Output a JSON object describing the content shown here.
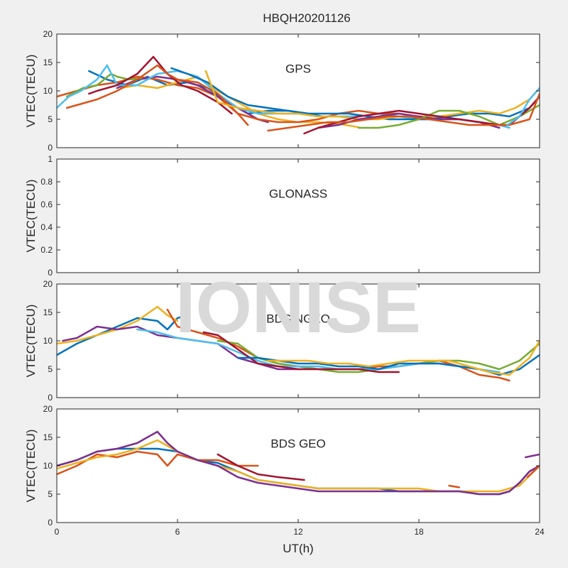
{
  "figure": {
    "title": "HBQH20201126",
    "watermark": "IONISE",
    "xlabel": "UT(h)",
    "xticks": [
      "0",
      "6",
      "12",
      "18",
      "24"
    ],
    "background": "#f0f0f0",
    "axes_color": "#ffffff",
    "watermark_color": "#d9d9d9"
  },
  "chart_data": [
    {
      "type": "line",
      "annotation": "GPS",
      "ylabel": "VTEC(TECU)",
      "xlim": [
        0,
        24
      ],
      "ylim": [
        0,
        20
      ],
      "yticks": [
        "0",
        "5",
        "10",
        "15",
        "20"
      ],
      "grid": false,
      "series": [
        {
          "color": "#0072bd",
          "x": [
            1.6,
            2.5,
            3.5,
            4.5,
            5.5,
            6.5,
            7.5,
            8.5,
            9.5,
            10.5,
            11.5,
            12.5,
            13.2
          ],
          "y": [
            13.5,
            12,
            11,
            12.5,
            11,
            11.5,
            10.5,
            8,
            6,
            6.5,
            6.5,
            6,
            5.5
          ]
        },
        {
          "color": "#d95319",
          "x": [
            0,
            1,
            2,
            3,
            4,
            5,
            6,
            7,
            8,
            9,
            9.5
          ],
          "y": [
            9,
            10,
            11,
            11.5,
            12.5,
            12,
            11,
            10.5,
            9,
            6,
            4
          ]
        },
        {
          "color": "#edb120",
          "x": [
            3.2,
            4,
            5,
            6,
            7,
            8,
            9,
            10,
            11,
            12,
            13,
            14,
            15
          ],
          "y": [
            10.5,
            11,
            10.5,
            11.5,
            12.5,
            10,
            8,
            6,
            5,
            4.5,
            4.5,
            4.2,
            3.6
          ]
        },
        {
          "color": "#7e2f8e",
          "x": [
            3,
            4,
            5,
            6,
            7,
            8,
            9,
            10,
            10.5
          ],
          "y": [
            10.5,
            12,
            12.5,
            12,
            11,
            9,
            7,
            5,
            4.5
          ]
        },
        {
          "color": "#77ac30",
          "x": [
            0.5,
            1.3,
            2,
            2.7,
            3,
            3.6,
            4.2
          ],
          "y": [
            9,
            10.5,
            11,
            13,
            12.5,
            12,
            12.2
          ]
        },
        {
          "color": "#4dbeee",
          "x": [
            0,
            0.6,
            1.2,
            2,
            2.5,
            3,
            4,
            5,
            6,
            7,
            8,
            9,
            10,
            11,
            12,
            13,
            14,
            15,
            16,
            17,
            18,
            19,
            20,
            21,
            22,
            22.5
          ],
          "y": [
            7,
            9,
            10,
            12,
            14.5,
            11,
            11,
            13,
            13.5,
            12.5,
            9.5,
            7,
            6,
            6,
            6,
            5.5,
            5.5,
            5.5,
            6,
            5.5,
            5,
            5,
            5,
            4.5,
            4,
            3.5
          ]
        },
        {
          "color": "#a2142f",
          "x": [
            1.6,
            2,
            3,
            4,
            4.8,
            5.5,
            6.2,
            7,
            8,
            8.7
          ],
          "y": [
            9.5,
            10,
            11,
            13,
            16,
            13,
            11,
            10,
            8,
            6
          ]
        },
        {
          "color": "#d95319",
          "x": [
            0.5,
            1,
            2,
            3,
            4,
            5,
            5.5,
            6,
            7,
            8,
            9,
            10,
            11,
            12,
            13,
            14,
            15,
            16,
            17
          ],
          "y": [
            7,
            7.5,
            8.5,
            10,
            12,
            14.5,
            13,
            12,
            11.5,
            9.5,
            6,
            5,
            4.5,
            4.5,
            5,
            6,
            6.5,
            6,
            6
          ]
        },
        {
          "color": "#0072bd",
          "x": [
            5.7,
            6.5,
            7.5,
            8.5,
            9.5,
            10.5,
            11.5,
            12.5,
            13.5,
            14.5,
            15.5,
            16.5,
            17.5,
            18.5,
            19.5,
            20.5,
            21.5,
            22.5,
            23.5,
            24
          ],
          "y": [
            14,
            13,
            11.5,
            9,
            7.5,
            7,
            6.5,
            6,
            6,
            6,
            5.5,
            5,
            5,
            5,
            5.5,
            6,
            6,
            5.5,
            7,
            9
          ]
        },
        {
          "color": "#edb120",
          "x": [
            7.4,
            8,
            9,
            10,
            11,
            12,
            13,
            14,
            15,
            16,
            17,
            18,
            19,
            20,
            21,
            22,
            22.8,
            23.5,
            24
          ],
          "y": [
            13.5,
            8,
            7,
            6.5,
            6,
            6,
            5.5,
            5.5,
            5,
            5,
            5.5,
            5.5,
            5.5,
            6,
            6.5,
            6,
            7,
            8.5,
            10.5
          ]
        },
        {
          "color": "#7e2f8e",
          "x": [
            13,
            14,
            15,
            16,
            17,
            18,
            19,
            20,
            21,
            21.5,
            22
          ],
          "y": [
            3.5,
            4,
            5,
            5.5,
            6,
            5.5,
            5,
            5,
            4.5,
            4,
            3.5
          ]
        },
        {
          "color": "#77ac30",
          "x": [
            15,
            16,
            17,
            18,
            19,
            20,
            21,
            22,
            23,
            24
          ],
          "y": [
            3.5,
            3.5,
            4,
            5,
            6.5,
            6.5,
            5.5,
            4,
            5.5,
            7.5
          ]
        },
        {
          "color": "#a2142f",
          "x": [
            12.3,
            13,
            14,
            15,
            16,
            17,
            18,
            19,
            20,
            21,
            22,
            22.5,
            23,
            23.5,
            24
          ],
          "y": [
            2.5,
            3.5,
            4.5,
            5.5,
            6,
            6.5,
            6,
            5.5,
            5,
            4.5,
            4,
            4,
            5.5,
            7,
            9
          ]
        },
        {
          "color": "#d95319",
          "x": [
            10.5,
            11.5,
            12.5,
            13.5,
            14.5,
            15.5,
            16.5,
            17.5,
            18.5,
            19.5,
            20.5,
            21.5,
            22.5,
            23.5,
            24
          ],
          "y": [
            3,
            3.5,
            4,
            4.5,
            4.5,
            5,
            5.5,
            5.5,
            5,
            4.5,
            4,
            4,
            4,
            5,
            9.5
          ]
        },
        {
          "color": "#4dbeee",
          "x": [
            22.4,
            23,
            23.5,
            24
          ],
          "y": [
            4,
            5.5,
            8.5,
            10.5
          ]
        }
      ]
    },
    {
      "type": "line",
      "annotation": "GLONASS",
      "ylabel": "VTEC(TECU)",
      "xlim": [
        0,
        24
      ],
      "ylim": [
        0,
        1
      ],
      "yticks": [
        "0",
        "0.2",
        "0.4",
        "0.6",
        "0.8",
        "1"
      ],
      "grid": false,
      "series": []
    },
    {
      "type": "line",
      "annotation": "BDS NGEO",
      "ylabel": "VTEC(TECU)",
      "xlim": [
        0,
        24
      ],
      "ylim": [
        0,
        20
      ],
      "yticks": [
        "0",
        "5",
        "10",
        "15",
        "20"
      ],
      "grid": false,
      "series": [
        {
          "color": "#0072bd",
          "x": [
            0,
            1,
            2,
            3,
            4,
            5,
            5.5,
            6,
            6.5
          ],
          "y": [
            7.5,
            9.5,
            11,
            12.5,
            14,
            13.5,
            12,
            14,
            14.5
          ]
        },
        {
          "color": "#edb120",
          "x": [
            0,
            1,
            2,
            3,
            4,
            5,
            5.5,
            6
          ],
          "y": [
            9.5,
            10,
            11,
            12,
            13.5,
            16,
            14.5,
            13.5
          ]
        },
        {
          "color": "#7e2f8e",
          "x": [
            0.3,
            1,
            2,
            3,
            4,
            5,
            6,
            7,
            8,
            9,
            10,
            11,
            12
          ],
          "y": [
            10,
            10.5,
            12.5,
            12,
            12.5,
            11,
            10.5,
            10,
            9.5,
            7,
            6,
            5,
            5
          ]
        },
        {
          "color": "#d95319",
          "x": [
            5.5,
            6,
            7,
            8,
            9,
            10,
            11,
            12,
            13,
            14,
            15,
            16,
            17,
            18,
            19,
            20,
            21,
            22,
            22.5
          ],
          "y": [
            15.5,
            12.5,
            11.5,
            10.5,
            9,
            7,
            6,
            5.5,
            5,
            5,
            5,
            5.5,
            5.5,
            6,
            6.5,
            5.5,
            4,
            3.5,
            3
          ]
        },
        {
          "color": "#77ac30",
          "x": [
            8,
            9,
            10,
            11,
            12,
            13,
            14,
            15,
            16,
            17,
            18,
            19,
            20,
            21,
            22,
            23,
            24
          ],
          "y": [
            10,
            9.5,
            7,
            6,
            5.5,
            5,
            4.5,
            4.5,
            5,
            5.5,
            6,
            6.5,
            6.5,
            6,
            5,
            6.5,
            9.5
          ]
        },
        {
          "color": "#4dbeee",
          "x": [
            4,
            5,
            6,
            7,
            8,
            9,
            10,
            11,
            12,
            13,
            14,
            15,
            16,
            17,
            18,
            19,
            20,
            21,
            22
          ],
          "y": [
            12,
            11.5,
            10.5,
            10,
            9.5,
            8,
            6.5,
            5.5,
            5.5,
            5.5,
            5,
            5,
            5,
            5.5,
            6,
            6,
            5.5,
            5,
            4.5
          ]
        },
        {
          "color": "#a2142f",
          "x": [
            7.3,
            8,
            9,
            10,
            11,
            12,
            13,
            14,
            15,
            16,
            17
          ],
          "y": [
            11.5,
            11,
            8.5,
            6,
            5.5,
            5,
            5,
            5,
            5,
            4.5,
            4.5
          ]
        },
        {
          "color": "#0072bd",
          "x": [
            9,
            10,
            11,
            12,
            13,
            14,
            15,
            16,
            17,
            18,
            19,
            20,
            21,
            22,
            23,
            24
          ],
          "y": [
            7,
            7,
            6.5,
            6,
            6,
            5.5,
            5.5,
            5,
            6,
            6,
            6,
            5.5,
            5,
            4,
            5,
            7.5
          ]
        },
        {
          "color": "#edb120",
          "x": [
            10.5,
            11.5,
            12.5,
            13.5,
            14.5,
            15.5,
            16.5,
            17.5,
            18.5,
            19.5,
            20.5,
            21.5,
            22.5,
            23.5,
            24
          ],
          "y": [
            6.5,
            6.5,
            6.5,
            6,
            6,
            5.5,
            6,
            6.5,
            6.5,
            6.5,
            5.5,
            4.5,
            4,
            7,
            10
          ]
        }
      ]
    },
    {
      "type": "line",
      "annotation": "BDS GEO",
      "ylabel": "VTEC(TECU)",
      "xlim": [
        0,
        24
      ],
      "ylim": [
        0,
        20
      ],
      "yticks": [
        "0",
        "5",
        "10",
        "15",
        "20"
      ],
      "grid": false,
      "series": [
        {
          "color": "#0072bd",
          "x": [
            0,
            1,
            2,
            3,
            4,
            5,
            6,
            7,
            8,
            9,
            10,
            11,
            12,
            13,
            14,
            15,
            16,
            17,
            18,
            19,
            20,
            21,
            22,
            22.5,
            23,
            23.5,
            24
          ],
          "y": [
            10,
            11,
            12.5,
            13,
            13,
            13,
            12.5,
            11,
            10.5,
            9,
            7.5,
            7,
            6.5,
            6,
            6,
            6,
            6,
            5.5,
            5.5,
            5.5,
            5.5,
            5,
            5,
            5.5,
            7,
            9,
            10
          ]
        },
        {
          "color": "#d95319",
          "x": [
            0,
            1,
            2,
            3,
            4,
            5,
            5.5,
            6,
            7,
            8,
            9,
            10
          ],
          "y": [
            8.5,
            10,
            12,
            11.5,
            12.5,
            12,
            10,
            12,
            11,
            11,
            10,
            10
          ]
        },
        {
          "color": "#edb120",
          "x": [
            0,
            1,
            2,
            3,
            4,
            5,
            6,
            7,
            8,
            9,
            10,
            11,
            12,
            13,
            14,
            15,
            16,
            17,
            18,
            19,
            20,
            21,
            22,
            23,
            24
          ],
          "y": [
            9.5,
            10.5,
            11.5,
            12,
            13,
            14.5,
            12.5,
            11,
            10,
            9,
            7.5,
            7,
            6.5,
            6,
            6,
            6,
            6,
            6,
            6,
            5.5,
            5.5,
            5.5,
            5.5,
            6.5,
            10
          ]
        },
        {
          "color": "#7e2f8e",
          "x": [
            0,
            1,
            2,
            3,
            4,
            5,
            5.5,
            6,
            7,
            8,
            9,
            10,
            11,
            12,
            13,
            14,
            15,
            16,
            17,
            18,
            19,
            20,
            21,
            22,
            22.5,
            23,
            23.5,
            24
          ],
          "y": [
            10,
            11,
            12.5,
            13,
            14,
            16,
            14,
            12.5,
            11,
            10,
            8,
            7,
            6.5,
            6,
            5.5,
            5.5,
            5.5,
            5.5,
            5.5,
            5.5,
            5.5,
            5.5,
            5,
            5,
            5.5,
            7,
            9,
            10
          ]
        },
        {
          "color": "#a2142f",
          "x": [
            8,
            9,
            10,
            11,
            12.3
          ],
          "y": [
            12,
            10,
            8.5,
            8,
            7.5
          ]
        },
        {
          "color": "#d95319",
          "x": [
            19.5,
            20
          ],
          "y": [
            6.5,
            6.2
          ]
        },
        {
          "color": "#7e2f8e",
          "x": [
            23.3,
            24
          ],
          "y": [
            11.5,
            12
          ]
        },
        {
          "color": "#d95319",
          "x": [
            23.4,
            24
          ],
          "y": [
            8,
            10
          ]
        }
      ]
    }
  ]
}
